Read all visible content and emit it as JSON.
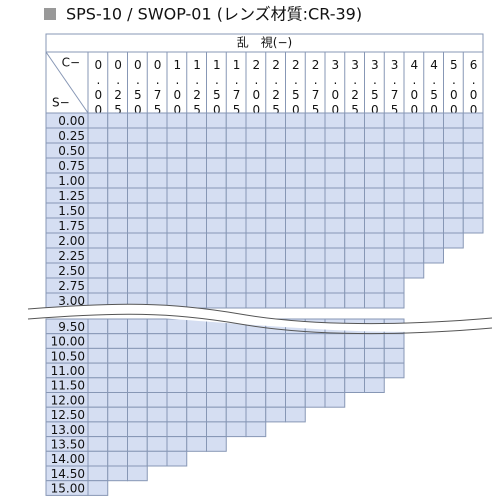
{
  "title": "SPS-10 / SWOP-01 (レンズ材質:CR-39)",
  "table": {
    "header": "乱　視(−)",
    "corner_column": "C−",
    "corner_row": "S−",
    "columns": [
      "0.00",
      "0.25",
      "0.50",
      "0.75",
      "1.00",
      "1.25",
      "1.50",
      "1.75",
      "2.00",
      "2.25",
      "2.50",
      "2.75",
      "3.00",
      "3.25",
      "3.50",
      "3.75",
      "4.00",
      "4.50",
      "5.00",
      "6.00"
    ],
    "upper_rows": [
      {
        "label": "0.00",
        "filled": 20
      },
      {
        "label": "0.25",
        "filled": 20
      },
      {
        "label": "0.50",
        "filled": 20
      },
      {
        "label": "0.75",
        "filled": 20
      },
      {
        "label": "1.00",
        "filled": 20
      },
      {
        "label": "1.25",
        "filled": 20
      },
      {
        "label": "1.50",
        "filled": 20
      },
      {
        "label": "1.75",
        "filled": 20
      },
      {
        "label": "2.00",
        "filled": 19
      },
      {
        "label": "2.25",
        "filled": 18
      },
      {
        "label": "2.50",
        "filled": 17
      },
      {
        "label": "2.75",
        "filled": 16
      },
      {
        "label": "3.00",
        "filled": 16
      }
    ],
    "lower_rows": [
      {
        "label": "9.50",
        "filled": 16
      },
      {
        "label": "10.00",
        "filled": 16
      },
      {
        "label": "10.50",
        "filled": 16
      },
      {
        "label": "11.00",
        "filled": 16
      },
      {
        "label": "11.50",
        "filled": 15
      },
      {
        "label": "12.00",
        "filled": 13
      },
      {
        "label": "12.50",
        "filled": 11
      },
      {
        "label": "13.00",
        "filled": 9
      },
      {
        "label": "13.50",
        "filled": 7
      },
      {
        "label": "14.00",
        "filled": 5
      },
      {
        "label": "14.50",
        "filled": 3
      },
      {
        "label": "15.00",
        "filled": 1
      }
    ]
  }
}
